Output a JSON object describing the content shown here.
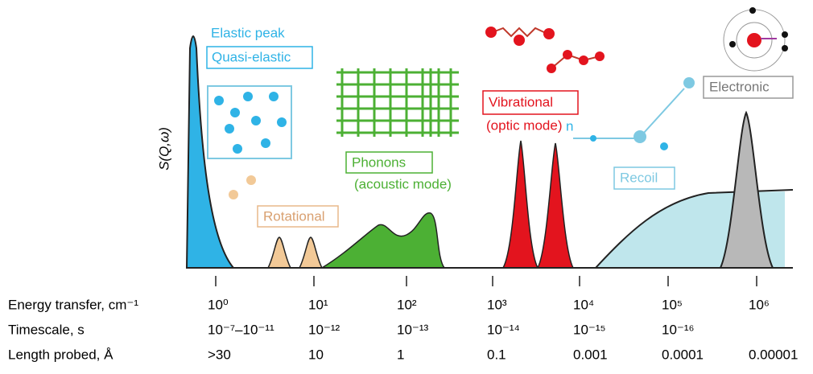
{
  "y_axis_label": "S(Q,ω)",
  "regions": {
    "elastic": "Elastic peak",
    "quasi_elastic": "Quasi-elastic",
    "rotational": "Rotational",
    "phonons": "Phonons",
    "phonons_sub": "(acoustic mode)",
    "vibrational": "Vibrational",
    "vibrational_sub": "(optic mode)",
    "recoil": "Recoil",
    "recoil_particle": "n",
    "electronic": "Electronic"
  },
  "rows": [
    {
      "label": "Energy transfer, cm⁻¹",
      "values": [
        "10⁰",
        "10¹",
        "10²",
        "10³",
        "10⁴",
        "10⁵",
        "10⁶"
      ]
    },
    {
      "label": "Timescale, s",
      "values": [
        "10⁻⁷–10⁻¹¹",
        "10⁻¹²",
        "10⁻¹³",
        "10⁻¹⁴",
        "10⁻¹⁵",
        "10⁻¹⁶"
      ]
    },
    {
      "label": "Length probed, Å",
      "values": [
        ">30",
        "10",
        "1",
        "0.1",
        "0.001",
        "0.0001",
        "0.00001"
      ]
    }
  ]
}
